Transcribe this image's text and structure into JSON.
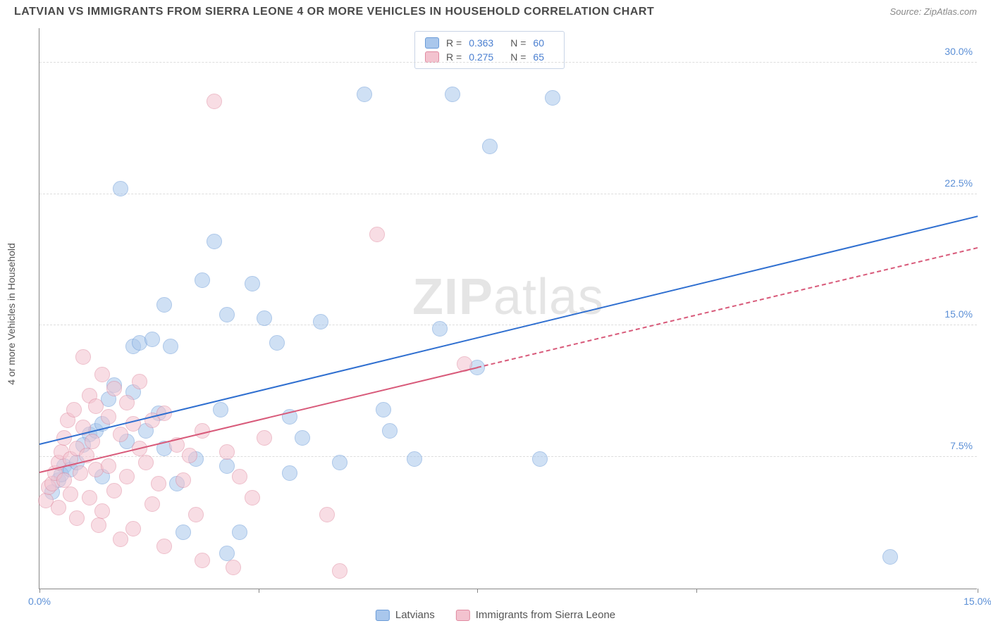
{
  "header": {
    "title": "LATVIAN VS IMMIGRANTS FROM SIERRA LEONE 4 OR MORE VEHICLES IN HOUSEHOLD CORRELATION CHART",
    "source": "Source: ZipAtlas.com"
  },
  "chart": {
    "type": "scatter",
    "watermark": "ZIPatlas",
    "yaxis_label": "4 or more Vehicles in Household",
    "xlim": [
      0,
      15
    ],
    "ylim": [
      0,
      32
    ],
    "yticks": [
      7.5,
      15.0,
      22.5,
      30.0
    ],
    "ytick_labels": [
      "7.5%",
      "15.0%",
      "22.5%",
      "30.0%"
    ],
    "xtick_positions": [
      0,
      3.5,
      7,
      10.5,
      15
    ],
    "xtick_labels": [
      "0.0%",
      "",
      "",
      "",
      "15.0%"
    ],
    "background_color": "#ffffff",
    "grid_color": "#dddddd",
    "axis_color": "#888888",
    "label_color": "#5b8fd6",
    "point_radius": 11,
    "point_opacity": 0.55,
    "series": [
      {
        "name": "Latvians",
        "fill": "#a9c7ec",
        "stroke": "#6a9bd8",
        "R": "0.363",
        "N": "60",
        "trend": {
          "x1": 0,
          "y1": 8.2,
          "x2": 15,
          "y2": 21.2,
          "color": "#2f6fd0",
          "width": 2,
          "dashed_after_x": null
        },
        "points": [
          [
            0.2,
            5.5
          ],
          [
            0.3,
            6.2
          ],
          [
            0.4,
            7.0
          ],
          [
            0.35,
            6.5
          ],
          [
            0.5,
            6.8
          ],
          [
            0.6,
            7.2
          ],
          [
            0.8,
            8.8
          ],
          [
            0.7,
            8.2
          ],
          [
            0.9,
            9.0
          ],
          [
            1.0,
            9.4
          ],
          [
            1.1,
            10.8
          ],
          [
            1.2,
            11.6
          ],
          [
            1.0,
            6.4
          ],
          [
            1.3,
            22.8
          ],
          [
            1.4,
            8.4
          ],
          [
            1.5,
            13.8
          ],
          [
            1.5,
            11.2
          ],
          [
            1.6,
            14.0
          ],
          [
            1.7,
            9.0
          ],
          [
            1.8,
            14.2
          ],
          [
            1.9,
            10.0
          ],
          [
            2.0,
            16.2
          ],
          [
            2.1,
            13.8
          ],
          [
            2.2,
            6.0
          ],
          [
            2.3,
            3.2
          ],
          [
            2.0,
            8.0
          ],
          [
            2.5,
            7.4
          ],
          [
            2.6,
            17.6
          ],
          [
            2.8,
            19.8
          ],
          [
            2.9,
            10.2
          ],
          [
            3.0,
            15.6
          ],
          [
            3.0,
            7.0
          ],
          [
            3.2,
            3.2
          ],
          [
            3.0,
            2.0
          ],
          [
            3.4,
            17.4
          ],
          [
            3.6,
            15.4
          ],
          [
            3.8,
            14.0
          ],
          [
            4.0,
            9.8
          ],
          [
            4.0,
            6.6
          ],
          [
            4.2,
            8.6
          ],
          [
            4.5,
            15.2
          ],
          [
            4.8,
            7.2
          ],
          [
            5.2,
            28.2
          ],
          [
            5.5,
            10.2
          ],
          [
            5.6,
            9.0
          ],
          [
            6.0,
            7.4
          ],
          [
            6.4,
            14.8
          ],
          [
            6.6,
            28.2
          ],
          [
            7.0,
            12.6
          ],
          [
            7.2,
            25.2
          ],
          [
            8.2,
            28.0
          ],
          [
            8.0,
            7.4
          ],
          [
            13.6,
            1.8
          ]
        ]
      },
      {
        "name": "Immigrants from Sierra Leone",
        "fill": "#f3c3cf",
        "stroke": "#e08aa0",
        "R": "0.275",
        "N": "65",
        "trend": {
          "x1": 0,
          "y1": 6.6,
          "x2": 15,
          "y2": 19.4,
          "color": "#d85a7a",
          "width": 2,
          "dashed_after_x": 7
        },
        "points": [
          [
            0.1,
            5.0
          ],
          [
            0.15,
            5.8
          ],
          [
            0.2,
            6.0
          ],
          [
            0.25,
            6.6
          ],
          [
            0.3,
            7.2
          ],
          [
            0.3,
            4.6
          ],
          [
            0.35,
            7.8
          ],
          [
            0.4,
            6.2
          ],
          [
            0.4,
            8.6
          ],
          [
            0.45,
            9.6
          ],
          [
            0.5,
            7.4
          ],
          [
            0.5,
            5.4
          ],
          [
            0.55,
            10.2
          ],
          [
            0.6,
            8.0
          ],
          [
            0.6,
            4.0
          ],
          [
            0.65,
            6.6
          ],
          [
            0.7,
            13.2
          ],
          [
            0.7,
            9.2
          ],
          [
            0.75,
            7.6
          ],
          [
            0.8,
            11.0
          ],
          [
            0.8,
            5.2
          ],
          [
            0.85,
            8.4
          ],
          [
            0.9,
            6.8
          ],
          [
            0.9,
            10.4
          ],
          [
            0.95,
            3.6
          ],
          [
            1.0,
            12.2
          ],
          [
            1.0,
            4.4
          ],
          [
            1.1,
            9.8
          ],
          [
            1.1,
            7.0
          ],
          [
            1.2,
            11.4
          ],
          [
            1.2,
            5.6
          ],
          [
            1.3,
            8.8
          ],
          [
            1.3,
            2.8
          ],
          [
            1.4,
            10.6
          ],
          [
            1.4,
            6.4
          ],
          [
            1.5,
            9.4
          ],
          [
            1.5,
            3.4
          ],
          [
            1.6,
            8.0
          ],
          [
            1.6,
            11.8
          ],
          [
            1.7,
            7.2
          ],
          [
            1.8,
            9.6
          ],
          [
            1.8,
            4.8
          ],
          [
            1.9,
            6.0
          ],
          [
            2.0,
            10.0
          ],
          [
            2.0,
            2.4
          ],
          [
            2.2,
            8.2
          ],
          [
            2.3,
            6.2
          ],
          [
            2.4,
            7.6
          ],
          [
            2.5,
            4.2
          ],
          [
            2.6,
            9.0
          ],
          [
            2.6,
            1.6
          ],
          [
            2.8,
            27.8
          ],
          [
            3.0,
            7.8
          ],
          [
            3.1,
            1.2
          ],
          [
            3.2,
            6.4
          ],
          [
            3.4,
            5.2
          ],
          [
            3.6,
            8.6
          ],
          [
            4.6,
            4.2
          ],
          [
            4.8,
            1.0
          ],
          [
            5.4,
            20.2
          ],
          [
            6.8,
            12.8
          ]
        ]
      }
    ]
  },
  "stats_box": {
    "rows": [
      {
        "swatch_fill": "#a9c7ec",
        "swatch_stroke": "#6a9bd8",
        "r_label": "R =",
        "r_val": "0.363",
        "n_label": "N =",
        "n_val": "60"
      },
      {
        "swatch_fill": "#f3c3cf",
        "swatch_stroke": "#e08aa0",
        "r_label": "R =",
        "r_val": "0.275",
        "n_label": "N =",
        "n_val": "65"
      }
    ]
  },
  "legend": {
    "items": [
      {
        "swatch_fill": "#a9c7ec",
        "swatch_stroke": "#6a9bd8",
        "label": "Latvians"
      },
      {
        "swatch_fill": "#f3c3cf",
        "swatch_stroke": "#e08aa0",
        "label": "Immigrants from Sierra Leone"
      }
    ]
  }
}
